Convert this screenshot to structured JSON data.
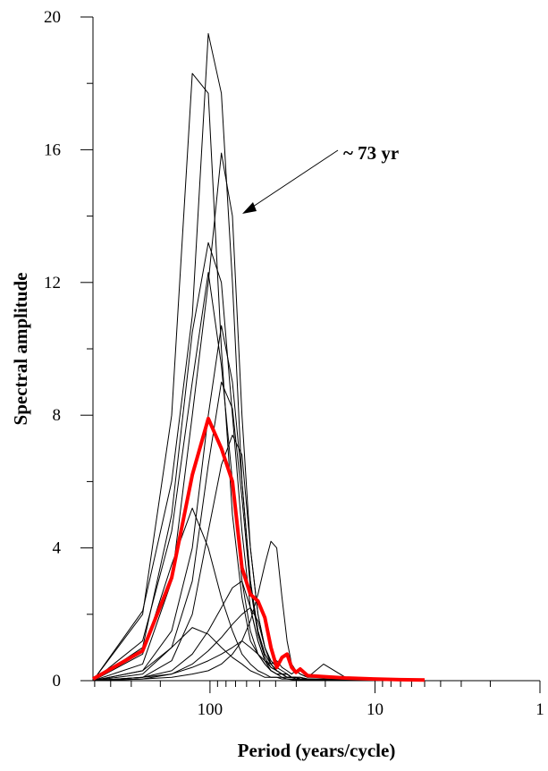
{
  "chart_data": {
    "type": "line",
    "xlabel": "Period (years/cycle)",
    "ylabel": "Spectral amplitude",
    "annotation": "~ 73 yr",
    "log_x": true,
    "xlim": [
      512,
      1
    ],
    "xticks": [
      100,
      10,
      1
    ],
    "x_minor_ticks": [
      500,
      400,
      300,
      200,
      90,
      80,
      70,
      60,
      50,
      40,
      30,
      20,
      9,
      8,
      7,
      6,
      5,
      4,
      3,
      2
    ],
    "ylim": [
      0,
      20
    ],
    "yticks": [
      0,
      4,
      8,
      12,
      16,
      20
    ],
    "y_minor_ticks": [
      2,
      6,
      10,
      14,
      18
    ],
    "x": [
      512,
      256,
      170.7,
      128,
      102.4,
      85.3,
      73.1,
      64,
      56.9,
      51.2,
      46.5,
      42.7,
      39.4,
      36.6,
      34.1,
      32,
      30.1,
      28.4,
      25.6,
      20.5,
      15.1,
      10.2,
      7.1,
      5.0
    ],
    "series": [
      {
        "color": "#000000",
        "width": 1,
        "values": [
          0.0,
          2.1,
          6.0,
          11.0,
          19.5,
          17.7,
          12.0,
          6.0,
          3.0,
          1.5,
          0.8,
          0.5,
          0.3,
          0.2,
          0.2,
          0.1,
          0.1,
          0.1,
          0.05,
          0.05,
          0.03,
          0.02,
          0.01,
          0.01
        ]
      },
      {
        "color": "#000000",
        "width": 1,
        "values": [
          0.0,
          2.0,
          8.0,
          18.3,
          17.7,
          10.0,
          5.0,
          2.5,
          1.2,
          0.8,
          0.5,
          0.3,
          0.2,
          0.2,
          0.1,
          0.1,
          0.1,
          0.05,
          0.05,
          0.03,
          0.02,
          0.01,
          0.01,
          0.0
        ]
      },
      {
        "color": "#000000",
        "width": 1,
        "values": [
          0.0,
          0.5,
          3.0,
          8.0,
          12.0,
          15.9,
          14.0,
          8.0,
          4.0,
          2.0,
          1.0,
          0.6,
          0.4,
          0.3,
          0.2,
          0.1,
          0.1,
          0.1,
          0.05,
          0.05,
          0.03,
          0.02,
          0.01,
          0.0
        ]
      },
      {
        "color": "#000000",
        "width": 1,
        "values": [
          0.0,
          1.0,
          5.0,
          10.5,
          13.2,
          12.0,
          8.0,
          4.5,
          2.2,
          1.2,
          0.6,
          0.4,
          0.3,
          0.2,
          0.1,
          0.1,
          0.1,
          0.05,
          0.05,
          0.03,
          0.02,
          0.01,
          0.0,
          0.0
        ]
      },
      {
        "color": "#000000",
        "width": 1,
        "values": [
          0.0,
          1.2,
          4.5,
          9.0,
          12.3,
          9.5,
          6.0,
          3.0,
          1.5,
          0.8,
          0.5,
          0.3,
          0.2,
          0.2,
          0.1,
          0.1,
          0.05,
          0.05,
          0.03,
          0.02,
          0.01,
          0.01,
          0.0,
          0.0
        ]
      },
      {
        "color": "#000000",
        "width": 1,
        "values": [
          0.0,
          0.3,
          1.5,
          4.0,
          8.0,
          10.7,
          9.0,
          6.0,
          3.0,
          1.5,
          0.8,
          0.5,
          0.3,
          0.2,
          0.2,
          0.1,
          0.1,
          0.05,
          0.05,
          0.03,
          0.02,
          0.01,
          0.0,
          0.0
        ]
      },
      {
        "color": "#000000",
        "width": 1,
        "values": [
          0.0,
          0.2,
          1.0,
          3.0,
          6.5,
          9.0,
          8.2,
          5.5,
          2.8,
          1.4,
          0.7,
          0.4,
          0.3,
          0.2,
          0.1,
          0.1,
          0.1,
          0.05,
          0.05,
          0.03,
          0.02,
          0.01,
          0.0,
          0.0
        ]
      },
      {
        "color": "#000000",
        "width": 1,
        "values": [
          0.0,
          0.1,
          0.6,
          2.0,
          4.5,
          6.5,
          7.4,
          6.8,
          4.0,
          2.0,
          1.0,
          0.5,
          0.3,
          0.2,
          0.2,
          0.1,
          0.1,
          0.05,
          0.05,
          0.03,
          0.02,
          0.01,
          0.0,
          0.0
        ]
      },
      {
        "color": "#000000",
        "width": 1,
        "values": [
          0.0,
          0.8,
          3.5,
          5.2,
          4.0,
          2.5,
          1.5,
          0.8,
          0.5,
          0.3,
          0.2,
          0.1,
          0.1,
          0.1,
          0.05,
          0.05,
          0.03,
          0.02,
          0.01,
          0.01,
          0.0,
          0.0,
          0.0,
          0.0
        ]
      },
      {
        "color": "#000000",
        "width": 1,
        "values": [
          0.0,
          0.05,
          0.1,
          0.2,
          0.3,
          0.5,
          0.8,
          1.2,
          1.8,
          2.6,
          3.5,
          4.2,
          4.0,
          2.5,
          1.2,
          0.5,
          0.3,
          0.2,
          0.1,
          0.1,
          0.05,
          0.02,
          0.01,
          0.0
        ]
      },
      {
        "color": "#000000",
        "width": 1,
        "values": [
          0.0,
          0.1,
          0.3,
          0.8,
          1.5,
          2.2,
          2.8,
          3.0,
          2.2,
          1.2,
          0.6,
          0.3,
          0.2,
          0.1,
          0.1,
          0.1,
          0.05,
          0.05,
          0.03,
          0.02,
          0.01,
          0.0,
          0.0,
          0.0
        ]
      },
      {
        "color": "#000000",
        "width": 1,
        "values": [
          0.0,
          0.05,
          0.2,
          0.5,
          0.9,
          1.3,
          1.7,
          2.0,
          2.2,
          1.8,
          1.0,
          0.5,
          0.3,
          0.2,
          0.2,
          0.1,
          0.1,
          0.05,
          0.03,
          0.02,
          0.01,
          0.0,
          0.0,
          0.0
        ]
      },
      {
        "color": "#000000",
        "width": 1,
        "values": [
          0.0,
          0.3,
          1.0,
          1.6,
          1.4,
          1.0,
          0.7,
          0.5,
          0.3,
          0.2,
          0.1,
          0.1,
          0.1,
          0.05,
          0.05,
          0.03,
          0.02,
          0.01,
          0.01,
          0.0,
          0.0,
          0.0,
          0.0,
          0.0
        ]
      },
      {
        "color": "#000000",
        "width": 1,
        "values": [
          0.0,
          0.1,
          0.2,
          0.4,
          0.6,
          0.8,
          1.0,
          1.2,
          1.0,
          0.8,
          0.6,
          0.5,
          0.6,
          0.4,
          0.3,
          0.2,
          0.3,
          0.2,
          0.1,
          0.5,
          0.1,
          0.05,
          0.02,
          0.0
        ]
      },
      {
        "color": "#ff0000",
        "width": 4,
        "values": [
          0.05,
          0.9,
          3.1,
          6.2,
          7.9,
          7.0,
          6.0,
          3.4,
          2.6,
          2.4,
          1.9,
          1.0,
          0.4,
          0.7,
          0.8,
          0.4,
          0.25,
          0.35,
          0.15,
          0.12,
          0.08,
          0.05,
          0.03,
          0.02
        ]
      }
    ]
  }
}
